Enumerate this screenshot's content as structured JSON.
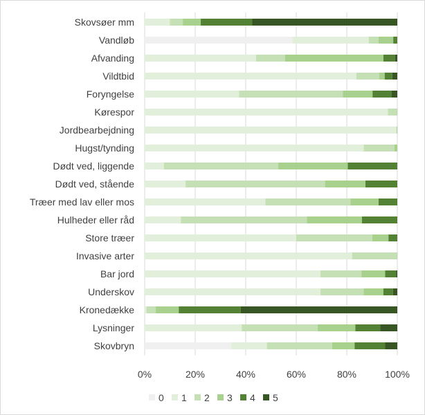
{
  "chart_data": {
    "type": "bar",
    "orientation": "horizontal",
    "stacked": "percent",
    "title": "",
    "xlabel": "",
    "ylabel": "",
    "xlim": [
      0,
      100
    ],
    "x_ticks": [
      "0%",
      "20%",
      "40%",
      "60%",
      "80%",
      "100%"
    ],
    "grid": true,
    "legend_position": "bottom",
    "categories": [
      "Skovsøer mm",
      "Vandløb",
      "Afvanding",
      "Vildtbid",
      "Foryngelse",
      "Kørespor",
      "Jordbearbejdning",
      "Hugst/tynding",
      "Dødt ved, liggende",
      "Dødt ved, stående",
      "Træer med lav eller mos",
      "Hulheder eller råd",
      "Store træer",
      "Invasive arter",
      "Bar jord",
      "Underskov",
      "Kronedække",
      "Lysninger",
      "Skovbryn"
    ],
    "series": [
      {
        "name": "0",
        "color": "#F0F0F0",
        "values": [
          0,
          58.5,
          0,
          0,
          0,
          0,
          0,
          0,
          0,
          0,
          0,
          0,
          0,
          0,
          0,
          0,
          0,
          0,
          34.2
        ]
      },
      {
        "name": "1",
        "color": "#E2EFDA",
        "values": [
          10.0,
          30.2,
          44.1,
          83.8,
          37.4,
          96.3,
          99.7,
          86.7,
          7.6,
          16.2,
          47.8,
          14.3,
          60.0,
          82.1,
          69.6,
          69.6,
          0.7,
          38.4,
          14.2
        ]
      },
      {
        "name": "2",
        "color": "#C5E0B4",
        "values": [
          5.1,
          3.9,
          11.5,
          9.0,
          41.0,
          3.5,
          0,
          12.2,
          45.3,
          55.2,
          33.7,
          49.9,
          30.1,
          17.7,
          16.2,
          17.1,
          3.7,
          30.1,
          25.8
        ]
      },
      {
        "name": "3",
        "color": "#A9D18E",
        "values": [
          7.1,
          5.8,
          38.9,
          2.2,
          11.8,
          0.2,
          0.3,
          1.1,
          27.5,
          16.0,
          11.1,
          21.8,
          6.4,
          0.2,
          9.4,
          7.8,
          9.1,
          14.9,
          8.9
        ]
      },
      {
        "name": "4",
        "color": "#548235",
        "values": [
          20.4,
          1.6,
          4.6,
          3.0,
          7.5,
          0,
          0,
          0,
          19.6,
          12.6,
          7.4,
          14.0,
          3.5,
          0,
          4.3,
          3.8,
          24.5,
          9.8,
          12.1
        ]
      },
      {
        "name": "5",
        "color": "#375623",
        "values": [
          57.4,
          0,
          0.9,
          2.0,
          2.3,
          0,
          0,
          0,
          0,
          0,
          0,
          0,
          0,
          0,
          0.5,
          1.7,
          62.0,
          6.8,
          4.8
        ]
      }
    ]
  }
}
